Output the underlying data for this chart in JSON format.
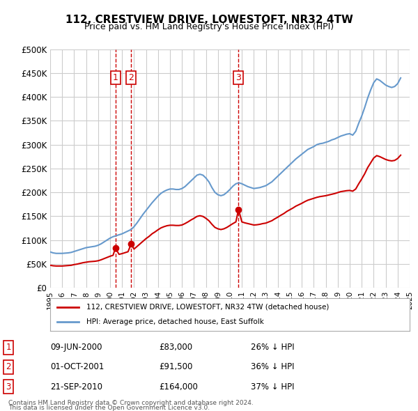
{
  "title": "112, CRESTVIEW DRIVE, LOWESTOFT, NR32 4TW",
  "subtitle": "Price paid vs. HM Land Registry's House Price Index (HPI)",
  "ylabel": "",
  "ylim": [
    0,
    500000
  ],
  "yticks": [
    0,
    50000,
    100000,
    150000,
    200000,
    250000,
    300000,
    350000,
    400000,
    450000,
    500000
  ],
  "background_color": "#ffffff",
  "grid_color": "#cccccc",
  "hpi_color": "#6699cc",
  "price_color": "#cc0000",
  "transactions": [
    {
      "label": "1",
      "date": "09-JUN-2000",
      "price": 83000,
      "note": "26% ↓ HPI",
      "x": 2000.44
    },
    {
      "label": "2",
      "date": "01-OCT-2001",
      "price": 91500,
      "note": "36% ↓ HPI",
      "x": 2001.75
    },
    {
      "label": "3",
      "date": "21-SEP-2010",
      "price": 164000,
      "note": "37% ↓ HPI",
      "x": 2010.72
    }
  ],
  "legend_property_label": "112, CRESTVIEW DRIVE, LOWESTOFT, NR32 4TW (detached house)",
  "legend_hpi_label": "HPI: Average price, detached house, East Suffolk",
  "footer_line1": "Contains HM Land Registry data © Crown copyright and database right 2024.",
  "footer_line2": "This data is licensed under the Open Government Licence v3.0.",
  "hpi_data": {
    "x": [
      1995.0,
      1995.25,
      1995.5,
      1995.75,
      1996.0,
      1996.25,
      1996.5,
      1996.75,
      1997.0,
      1997.25,
      1997.5,
      1997.75,
      1998.0,
      1998.25,
      1998.5,
      1998.75,
      1999.0,
      1999.25,
      1999.5,
      1999.75,
      2000.0,
      2000.25,
      2000.5,
      2000.75,
      2001.0,
      2001.25,
      2001.5,
      2001.75,
      2002.0,
      2002.25,
      2002.5,
      2002.75,
      2003.0,
      2003.25,
      2003.5,
      2003.75,
      2004.0,
      2004.25,
      2004.5,
      2004.75,
      2005.0,
      2005.25,
      2005.5,
      2005.75,
      2006.0,
      2006.25,
      2006.5,
      2006.75,
      2007.0,
      2007.25,
      2007.5,
      2007.75,
      2008.0,
      2008.25,
      2008.5,
      2008.75,
      2009.0,
      2009.25,
      2009.5,
      2009.75,
      2010.0,
      2010.25,
      2010.5,
      2010.75,
      2011.0,
      2011.25,
      2011.5,
      2011.75,
      2012.0,
      2012.25,
      2012.5,
      2012.75,
      2013.0,
      2013.25,
      2013.5,
      2013.75,
      2014.0,
      2014.25,
      2014.5,
      2014.75,
      2015.0,
      2015.25,
      2015.5,
      2015.75,
      2016.0,
      2016.25,
      2016.5,
      2016.75,
      2017.0,
      2017.25,
      2017.5,
      2017.75,
      2018.0,
      2018.25,
      2018.5,
      2018.75,
      2019.0,
      2019.25,
      2019.5,
      2019.75,
      2020.0,
      2020.25,
      2020.5,
      2020.75,
      2021.0,
      2021.25,
      2021.5,
      2021.75,
      2022.0,
      2022.25,
      2022.5,
      2022.75,
      2023.0,
      2023.25,
      2023.5,
      2023.75,
      2024.0,
      2024.25
    ],
    "y": [
      75000,
      73000,
      72000,
      72000,
      72000,
      72500,
      73000,
      74000,
      76000,
      78000,
      80000,
      82000,
      84000,
      85000,
      86000,
      87000,
      89000,
      92000,
      96000,
      100000,
      104000,
      107000,
      109000,
      111000,
      113000,
      116000,
      119000,
      122000,
      128000,
      136000,
      145000,
      154000,
      162000,
      170000,
      178000,
      185000,
      192000,
      198000,
      202000,
      205000,
      207000,
      207000,
      206000,
      206000,
      208000,
      212000,
      218000,
      224000,
      230000,
      236000,
      238000,
      236000,
      230000,
      222000,
      210000,
      200000,
      195000,
      193000,
      195000,
      200000,
      206000,
      213000,
      218000,
      220000,
      218000,
      215000,
      212000,
      210000,
      208000,
      209000,
      210000,
      212000,
      214000,
      218000,
      222000,
      228000,
      234000,
      240000,
      246000,
      252000,
      258000,
      264000,
      270000,
      275000,
      280000,
      285000,
      290000,
      293000,
      296000,
      300000,
      302000,
      303000,
      305000,
      307000,
      310000,
      312000,
      315000,
      318000,
      320000,
      322000,
      323000,
      320000,
      328000,
      345000,
      360000,
      378000,
      398000,
      415000,
      430000,
      438000,
      435000,
      430000,
      425000,
      422000,
      420000,
      422000,
      428000,
      440000
    ]
  },
  "price_hpi_data": {
    "x": [
      1995.0,
      1995.25,
      1995.5,
      1995.75,
      1996.0,
      1996.25,
      1996.5,
      1996.75,
      1997.0,
      1997.25,
      1997.5,
      1997.75,
      1998.0,
      1998.25,
      1998.5,
      1998.75,
      1999.0,
      1999.25,
      1999.5,
      1999.75,
      2000.0,
      2000.25,
      2000.44,
      2000.75,
      2001.0,
      2001.25,
      2001.5,
      2001.75,
      2002.0,
      2002.25,
      2002.5,
      2002.75,
      2003.0,
      2003.25,
      2003.5,
      2003.75,
      2004.0,
      2004.25,
      2004.5,
      2004.75,
      2005.0,
      2005.25,
      2005.5,
      2005.75,
      2006.0,
      2006.25,
      2006.5,
      2006.75,
      2007.0,
      2007.25,
      2007.5,
      2007.75,
      2008.0,
      2008.25,
      2008.5,
      2008.75,
      2009.0,
      2009.25,
      2009.5,
      2009.75,
      2010.0,
      2010.25,
      2010.5,
      2010.72,
      2011.0,
      2011.25,
      2011.5,
      2011.75,
      2012.0,
      2012.25,
      2012.5,
      2012.75,
      2013.0,
      2013.25,
      2013.5,
      2013.75,
      2014.0,
      2014.25,
      2014.5,
      2014.75,
      2015.0,
      2015.25,
      2015.5,
      2015.75,
      2016.0,
      2016.25,
      2016.5,
      2016.75,
      2017.0,
      2017.25,
      2017.5,
      2017.75,
      2018.0,
      2018.25,
      2018.5,
      2018.75,
      2019.0,
      2019.25,
      2019.5,
      2019.75,
      2020.0,
      2020.25,
      2020.5,
      2020.75,
      2021.0,
      2021.25,
      2021.5,
      2021.75,
      2022.0,
      2022.25,
      2022.5,
      2022.75,
      2023.0,
      2023.25,
      2023.5,
      2023.75,
      2024.0,
      2024.25
    ],
    "y": [
      47000,
      46000,
      45500,
      45500,
      45500,
      46000,
      46500,
      47000,
      48500,
      49500,
      51000,
      52500,
      53500,
      54500,
      55000,
      55500,
      56500,
      58500,
      61000,
      63500,
      66000,
      68000,
      83000,
      70000,
      71500,
      73500,
      75500,
      91500,
      81000,
      86500,
      92000,
      97500,
      103000,
      107500,
      113000,
      117000,
      121500,
      125500,
      128000,
      130000,
      131000,
      131000,
      130500,
      130500,
      131500,
      134500,
      138000,
      142000,
      145500,
      149500,
      151000,
      149500,
      145500,
      140500,
      133000,
      126500,
      123500,
      122000,
      123500,
      126500,
      130500,
      134500,
      138000,
      164000,
      138000,
      136000,
      134500,
      133000,
      131500,
      132000,
      133000,
      134500,
      135500,
      138000,
      140500,
      144500,
      148000,
      152000,
      155500,
      160000,
      163500,
      167000,
      171000,
      174000,
      177000,
      180500,
      183500,
      185500,
      187500,
      189500,
      191000,
      192000,
      193000,
      194500,
      196000,
      197500,
      199500,
      201500,
      202500,
      203500,
      204000,
      202500,
      207000,
      218000,
      228000,
      239000,
      252000,
      262000,
      272000,
      277000,
      275000,
      272000,
      269000,
      267000,
      266000,
      267000,
      271000,
      278000
    ]
  }
}
